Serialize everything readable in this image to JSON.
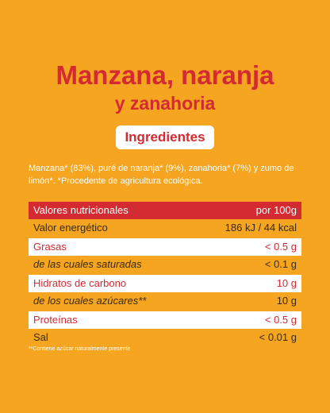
{
  "header": {
    "title": "Manzana, naranja",
    "subtitle": "y zanahoria"
  },
  "ingredients": {
    "button": "Ingredientes",
    "text": "Manzana* (83%), puré de naranja* (9%), zanahoria* (7%) y zumo de limón*. *Procedente de agricultura ecológica."
  },
  "table": {
    "header": [
      "Valores nutricionales",
      "por 100g"
    ],
    "rows": [
      [
        "Valor energético",
        "186 kJ / 44 kcal"
      ],
      [
        "Grasas",
        "< 0.5 g"
      ],
      [
        "de las cuales saturadas",
        "< 0.1 g"
      ],
      [
        "Hidratos de carbono",
        "10 g"
      ],
      [
        "de los cuales azúcares**",
        "10 g"
      ],
      [
        "Proteínas",
        "< 0.5 g"
      ],
      [
        "Sal",
        "< 0.01 g"
      ]
    ]
  },
  "footnote": "**Contiene azúcar naturalmente presente"
}
